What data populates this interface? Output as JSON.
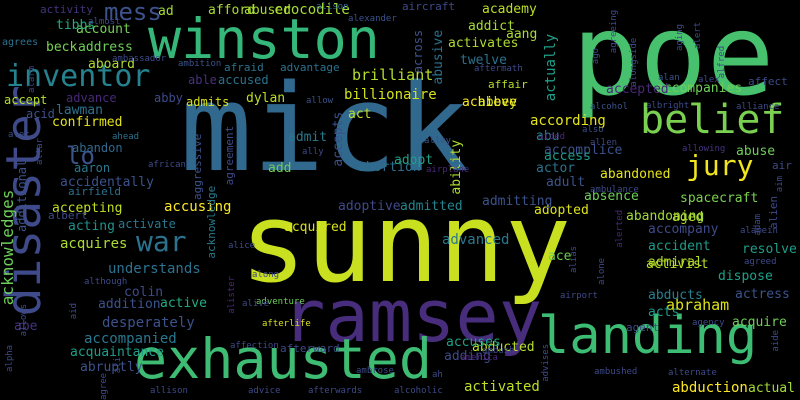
{
  "colors": {
    "background": "#000000",
    "palette": [
      "#d5e21a",
      "#9fd938",
      "#60ca60",
      "#35b779",
      "#1f9e89",
      "#26828e",
      "#31688e",
      "#3e4a89",
      "#472d7b",
      "#440154"
    ]
  },
  "words": [
    {
      "text": "mick",
      "color": "#31688e"
    },
    {
      "text": "sunny",
      "color": "#c8e020"
    },
    {
      "text": "poe",
      "color": "#48c16e"
    },
    {
      "text": "ramsey",
      "color": "#472d7b"
    },
    {
      "text": "winston",
      "color": "#35b779"
    },
    {
      "text": "exhausted",
      "color": "#3fbc73"
    },
    {
      "text": "landing",
      "color": "#3dbc74"
    },
    {
      "text": "disaster",
      "color": "#3e4a89"
    },
    {
      "text": "belief",
      "color": "#7ad151"
    },
    {
      "text": "inventor",
      "color": "#26828e"
    },
    {
      "text": "jury",
      "color": "#f1e51d"
    },
    {
      "text": "war",
      "color": "#2c728e"
    },
    {
      "text": "lo",
      "color": "#3b528b"
    },
    {
      "text": "mess",
      "color": "#3b528b"
    },
    {
      "text": "acknowledges",
      "color": "#6ece58"
    },
    {
      "text": "brilliant",
      "color": "#b5de2b"
    },
    {
      "text": "billionaire",
      "color": "#d2e21b"
    },
    {
      "text": "abraham",
      "color": "#dde318"
    },
    {
      "text": "understands",
      "color": "#2c728e"
    },
    {
      "text": "crocodile",
      "color": "#a5db36"
    },
    {
      "text": "accusing",
      "color": "#fde725"
    },
    {
      "text": "abused",
      "color": "#a8db34"
    },
    {
      "text": "academy",
      "color": "#b8de29"
    },
    {
      "text": "activates",
      "color": "#addc30"
    },
    {
      "text": "accompanies",
      "color": "#6ece58"
    },
    {
      "text": "accepted",
      "color": "#482878"
    },
    {
      "text": "spacecraft",
      "color": "#7ad151"
    },
    {
      "text": "abandoned",
      "color": "#e5e419"
    },
    {
      "text": "abandoning",
      "color": "#a0da39"
    },
    {
      "text": "desperately",
      "color": "#3b528b"
    },
    {
      "text": "accompanied",
      "color": "#2a788e"
    },
    {
      "text": "acquires",
      "color": "#addc30"
    },
    {
      "text": "activist",
      "color": "#b8de29"
    },
    {
      "text": "actual",
      "color": "#a5db36"
    },
    {
      "text": "abduction",
      "color": "#fde725"
    },
    {
      "text": "abducted",
      "color": "#b5de2b"
    },
    {
      "text": "activated",
      "color": "#bddf26"
    },
    {
      "text": "adding",
      "color": "#3e4a89"
    },
    {
      "text": "accuses",
      "color": "#1fa188"
    },
    {
      "text": "adopted",
      "color": "#dde318"
    },
    {
      "text": "admitting",
      "color": "#3b528b"
    },
    {
      "text": "advanced",
      "color": "#2a788e"
    },
    {
      "text": "acquired",
      "color": "#d8e219"
    },
    {
      "text": "adoptive",
      "color": "#3e4a89"
    },
    {
      "text": "abortion",
      "color": "#2d708e"
    },
    {
      "text": "admitted",
      "color": "#25848e"
    },
    {
      "text": "accident",
      "color": "#1f9a8a"
    },
    {
      "text": "dispose",
      "color": "#1fa188"
    },
    {
      "text": "resolve",
      "color": "#1f9e89"
    },
    {
      "text": "acquire",
      "color": "#6ece58"
    },
    {
      "text": "actress",
      "color": "#3b528b"
    },
    {
      "text": "abducts",
      "color": "#277f8e"
    },
    {
      "text": "acts",
      "color": "#1f9a8a"
    },
    {
      "text": "addition",
      "color": "#3b528b"
    },
    {
      "text": "active",
      "color": "#25ab82"
    },
    {
      "text": "colin",
      "color": "#3e4a89"
    },
    {
      "text": "acquaintance",
      "color": "#1f9e89"
    },
    {
      "text": "abruptly",
      "color": "#3b528b"
    },
    {
      "text": "aboard",
      "color": "#addc30"
    },
    {
      "text": "account",
      "color": "#75d054"
    },
    {
      "text": "address",
      "color": "#6ece58"
    },
    {
      "text": "able",
      "color": "#46337e"
    },
    {
      "text": "accused",
      "color": "#2c728e"
    },
    {
      "text": "admits",
      "color": "#d8e219"
    },
    {
      "text": "dylan",
      "color": "#bddf26"
    },
    {
      "text": "advance",
      "color": "#482878"
    },
    {
      "text": "abby",
      "color": "#3e4a89"
    },
    {
      "text": "accept",
      "color": "#b5de2b"
    },
    {
      "text": "lawman",
      "color": "#2c728e"
    },
    {
      "text": "confirmed",
      "color": "#e5e419"
    },
    {
      "text": "acid",
      "color": "#3b528b"
    },
    {
      "text": "abandon",
      "color": "#31688e"
    },
    {
      "text": "aaron",
      "color": "#2a788e"
    },
    {
      "text": "accidentally",
      "color": "#3b528b"
    },
    {
      "text": "airfield",
      "color": "#2d708e"
    },
    {
      "text": "accepting",
      "color": "#c2df23"
    },
    {
      "text": "activate",
      "color": "#2a788e"
    },
    {
      "text": "acting",
      "color": "#21918c"
    },
    {
      "text": "beck",
      "color": "#7ad151"
    },
    {
      "text": "tibbs",
      "color": "#25ab82"
    },
    {
      "text": "twelve",
      "color": "#2c728e"
    },
    {
      "text": "abbey",
      "color": "#c2df23"
    },
    {
      "text": "achieve",
      "color": "#fde725"
    },
    {
      "text": "aang",
      "color": "#a8db34"
    },
    {
      "text": "addict",
      "color": "#a5db36"
    },
    {
      "text": "affair",
      "color": "#b5de2b"
    },
    {
      "text": "abusive",
      "color": "#2c728e"
    },
    {
      "text": "actually",
      "color": "#1f9e89"
    },
    {
      "text": "across",
      "color": "#3b528b"
    },
    {
      "text": "according",
      "color": "#e5e419"
    },
    {
      "text": "accomplice",
      "color": "#3b528b"
    },
    {
      "text": "access",
      "color": "#1f9a8a"
    },
    {
      "text": "actor",
      "color": "#2c728e"
    },
    {
      "text": "adult",
      "color": "#3b528b"
    },
    {
      "text": "absence",
      "color": "#6ece58"
    },
    {
      "text": "abuse",
      "color": "#6ece58"
    },
    {
      "text": "abu",
      "color": "#25848e"
    },
    {
      "text": "accompany",
      "color": "#3e4a89"
    },
    {
      "text": "admiral",
      "color": "#b5de2b"
    },
    {
      "text": "aged",
      "color": "#addc30"
    },
    {
      "text": "ace",
      "color": "#6ece58"
    },
    {
      "text": "abe",
      "color": "#46337e"
    },
    {
      "text": "admit",
      "color": "#2a788e"
    },
    {
      "text": "add",
      "color": "#6ece58"
    },
    {
      "text": "adopt",
      "color": "#1fa188"
    },
    {
      "text": "act",
      "color": "#bddf26"
    },
    {
      "text": "accepts",
      "color": "#3b528b"
    },
    {
      "text": "ability",
      "color": "#addc30"
    },
    {
      "text": "aggressive",
      "color": "#3b528b"
    },
    {
      "text": "acknowledge",
      "color": "#2a788e"
    },
    {
      "text": "agreement",
      "color": "#3e4a89"
    },
    {
      "text": "additional",
      "color": "#3b528b"
    },
    {
      "text": "albert",
      "color": "#3e4a89"
    },
    {
      "text": "activity",
      "color": "#46337e"
    },
    {
      "text": "ad",
      "color": "#a5db36"
    },
    {
      "text": "afford",
      "color": "#a8db34"
    },
    {
      "text": "aircraft",
      "color": "#3e4a89"
    },
    {
      "text": "agrees",
      "color": "#2c728e"
    },
    {
      "text": "almost",
      "color": "#3e4a89"
    },
    {
      "text": "alexander",
      "color": "#3b528b"
    },
    {
      "text": "alison",
      "color": "#31688e"
    },
    {
      "text": "afraid",
      "color": "#2c728e"
    },
    {
      "text": "advantage",
      "color": "#2c728e"
    },
    {
      "text": "ambition",
      "color": "#3b528b"
    },
    {
      "text": "allow",
      "color": "#3b528b"
    },
    {
      "text": "aftermath",
      "color": "#3e4a89"
    },
    {
      "text": "alec",
      "color": "#3b528b"
    },
    {
      "text": "ahead",
      "color": "#2c728e"
    },
    {
      "text": "african",
      "color": "#3e4a89"
    },
    {
      "text": "ally",
      "color": "#3e4a89"
    },
    {
      "text": "alley",
      "color": "#3b528b"
    },
    {
      "text": "airplane",
      "color": "#482878"
    },
    {
      "text": "aided",
      "color": "#482878"
    },
    {
      "text": "also",
      "color": "#3b528b"
    },
    {
      "text": "allen",
      "color": "#3e4a89"
    },
    {
      "text": "allowing",
      "color": "#46337e"
    },
    {
      "text": "alan",
      "color": "#3b528b"
    },
    {
      "text": "alex",
      "color": "#3e4a89"
    },
    {
      "text": "alcohol",
      "color": "#3b528b"
    },
    {
      "text": "albright",
      "color": "#3e4a89"
    },
    {
      "text": "alliance",
      "color": "#3e4a89"
    },
    {
      "text": "affect",
      "color": "#3e4a89"
    },
    {
      "text": "air",
      "color": "#3e4a89"
    },
    {
      "text": "aim",
      "color": "#3e4a89"
    },
    {
      "text": "alien",
      "color": "#3e4a89"
    },
    {
      "text": "adam",
      "color": "#3e4a89"
    },
    {
      "text": "alamein",
      "color": "#3e4a89"
    },
    {
      "text": "agreed",
      "color": "#3e4a89"
    },
    {
      "text": "agreeing",
      "color": "#3e4a89"
    },
    {
      "text": "ago",
      "color": "#3e4a89"
    },
    {
      "text": "aging",
      "color": "#3e4a89"
    },
    {
      "text": "alert",
      "color": "#3e4a89"
    },
    {
      "text": "alfred",
      "color": "#3e4a89"
    },
    {
      "text": "alongside",
      "color": "#3e4a89"
    },
    {
      "text": "ambulance",
      "color": "#3e4a89"
    },
    {
      "text": "alerted",
      "color": "#482878"
    },
    {
      "text": "alias",
      "color": "#3e4a89"
    },
    {
      "text": "alone",
      "color": "#3e4a89"
    },
    {
      "text": "airport",
      "color": "#3e4a89"
    },
    {
      "text": "agent",
      "color": "#3e4a89"
    },
    {
      "text": "agency",
      "color": "#3e4a89"
    },
    {
      "text": "aide",
      "color": "#3e4a89"
    },
    {
      "text": "ambushed",
      "color": "#3e4a89"
    },
    {
      "text": "alternate",
      "color": "#3e4a89"
    },
    {
      "text": "advises",
      "color": "#3e4a89"
    },
    {
      "text": "ah",
      "color": "#3e4a89"
    },
    {
      "text": "america",
      "color": "#482878"
    },
    {
      "text": "ambush",
      "color": "#3e4a89"
    },
    {
      "text": "ambrose",
      "color": "#3e4a89"
    },
    {
      "text": "alcoholic",
      "color": "#3e4a89"
    },
    {
      "text": "afterwards",
      "color": "#3e4a89"
    },
    {
      "text": "advice",
      "color": "#3e4a89"
    },
    {
      "text": "allison",
      "color": "#3e4a89"
    },
    {
      "text": "afterward",
      "color": "#3e4a89"
    },
    {
      "text": "affection",
      "color": "#3e4a89"
    },
    {
      "text": "afterlife",
      "color": "#d8e219"
    },
    {
      "text": "adventure",
      "color": "#6ece58"
    },
    {
      "text": "alive",
      "color": "#3e4a89"
    },
    {
      "text": "along",
      "color": "#3e4a89"
    },
    {
      "text": "alister",
      "color": "#482878"
    },
    {
      "text": "alice",
      "color": "#3e4a89"
    },
    {
      "text": "although",
      "color": "#3e4a89"
    },
    {
      "text": "ali",
      "color": "#3e4a89"
    },
    {
      "text": "agree",
      "color": "#3e4a89"
    },
    {
      "text": "aid",
      "color": "#3e4a89"
    },
    {
      "text": "alpha",
      "color": "#3e4a89"
    },
    {
      "text": "allows",
      "color": "#3e4a89"
    },
    {
      "text": "ambassador",
      "color": "#3e4a89"
    },
    {
      "text": "alarm",
      "color": "#3e4a89"
    },
    {
      "text": "altar",
      "color": "#3e4a89"
    },
    {
      "text": "always",
      "color": "#3e4a89"
    },
    {
      "text": "aliens",
      "color": "#3e4a89"
    }
  ]
}
